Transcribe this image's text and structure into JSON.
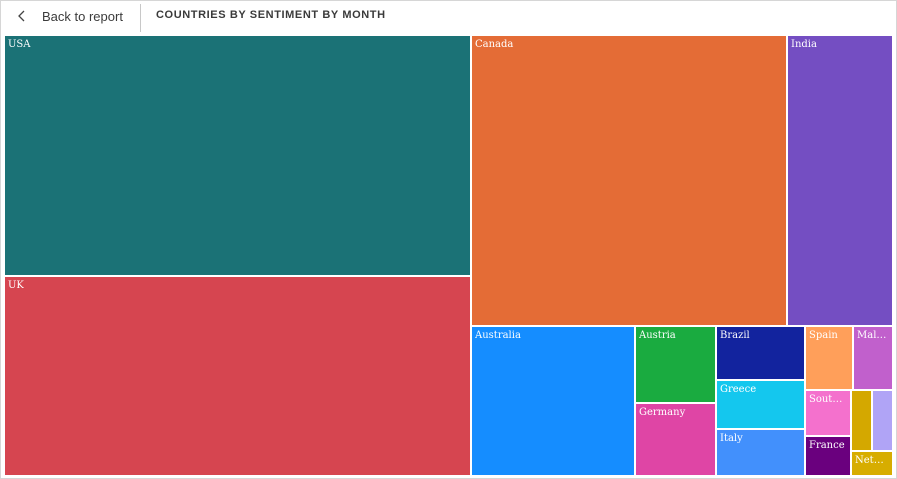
{
  "header": {
    "back_label": "Back to report",
    "title": "COUNTRIES BY SENTIMENT BY MONTH"
  },
  "chart_data": {
    "type": "treemap",
    "title": "COUNTRIES BY SENTIMENT BY MONTH",
    "items": [
      {
        "label": "USA",
        "value": 112,
        "color": "#1B7276"
      },
      {
        "label": "UK",
        "value": 103,
        "color": "#D64550"
      },
      {
        "label": "Canada",
        "value": 91,
        "color": "#E46C36"
      },
      {
        "label": "India",
        "value": 31,
        "color": "#744EC2"
      },
      {
        "label": "Australia",
        "value": 20,
        "color": "#158DFF"
      },
      {
        "label": "Austria",
        "value": 5.1,
        "color": "#1AAB40"
      },
      {
        "label": "Germany",
        "value": 4.7,
        "color": "#DF45A5"
      },
      {
        "label": "Brazil",
        "value": 4.3,
        "color": "#12239E"
      },
      {
        "label": "Greece",
        "value": 3.9,
        "color": "#14C7EE"
      },
      {
        "label": "Italy",
        "value": 3.6,
        "color": "#4290FC"
      },
      {
        "label": "Spain",
        "value": 2.5,
        "color": "#FF9F5A"
      },
      {
        "label": "Malaysia",
        "value": 2.2,
        "color": "#C160CC"
      },
      {
        "label": "South Africa",
        "value": 1.5,
        "color": "#F471CD"
      },
      {
        "label": "France",
        "value": 1.3,
        "color": "#6A007E"
      },
      {
        "label": "Netherlands",
        "value": 1.0,
        "color": "#D7AD00"
      },
      {
        "label": "",
        "value": 0.8,
        "color": "#D4A800"
      },
      {
        "label": "",
        "value": 0.8,
        "color": "#B0A4F6"
      }
    ]
  }
}
